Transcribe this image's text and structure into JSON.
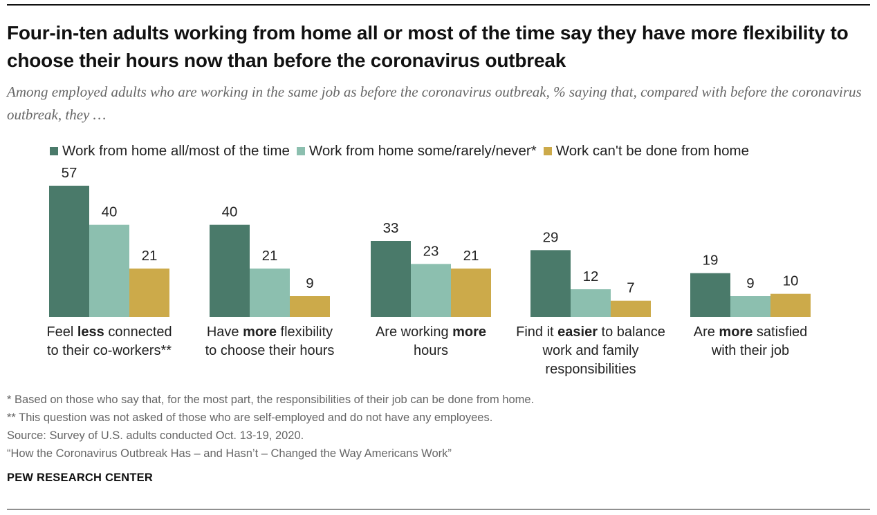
{
  "title": "Four-in-ten adults working from home all or most of the time say they have more flexibility to choose their hours now than before the coronavirus outbreak",
  "subtitle": "Among employed adults who are working in the same job as before the coronavirus outbreak, % saying that, compared with before the coronavirus outbreak, they …",
  "legend": [
    {
      "label": "Work from home all/most of the time",
      "color": "#4a7a6a"
    },
    {
      "label": "Work from home some/rarely/never*",
      "color": "#8cbfaf"
    },
    {
      "label": "Work can't be done from home",
      "color": "#ccaa4a"
    }
  ],
  "categories": [
    {
      "pre": "Feel ",
      "bold": "less",
      "post": " connected",
      "line2": "to their co-workers**",
      "line3": ""
    },
    {
      "pre": "Have ",
      "bold": "more",
      "post": " flexibility",
      "line2": "to choose their hours",
      "line3": ""
    },
    {
      "pre": "Are working ",
      "bold": "more",
      "post": "",
      "line2": "hours",
      "line3": ""
    },
    {
      "pre": "Find it ",
      "bold": "easier",
      "post": " to balance",
      "line2": "work and family",
      "line3": "responsibilities"
    },
    {
      "pre": "Are ",
      "bold": "more",
      "post": " satisfied",
      "line2": "with their job",
      "line3": ""
    }
  ],
  "chart_data": {
    "type": "bar",
    "categories": [
      "Feel less connected to their co-workers**",
      "Have more flexibility to choose their hours",
      "Are working more hours",
      "Find it easier to balance work and family responsibilities",
      "Are more satisfied with their job"
    ],
    "series": [
      {
        "name": "Work from home all/most of the time",
        "values": [
          57,
          40,
          33,
          29,
          19
        ]
      },
      {
        "name": "Work from home some/rarely/never*",
        "values": [
          40,
          21,
          23,
          12,
          9
        ]
      },
      {
        "name": "Work can't be done from home",
        "values": [
          21,
          9,
          21,
          7,
          10
        ]
      }
    ],
    "ylim": [
      0,
      57
    ],
    "grid": false,
    "legend_position": "top"
  },
  "notes": [
    "* Based on those who say that, for the most part, the responsibilities of their job can be done from home.",
    "** This question was not asked of those who are self-employed and do not have any employees.",
    "Source: Survey of U.S. adults conducted Oct. 13-19, 2020.",
    "“How the Coronavirus Outbreak Has – and Hasn’t – Changed the Way Americans Work”"
  ],
  "brand": "PEW RESEARCH CENTER"
}
